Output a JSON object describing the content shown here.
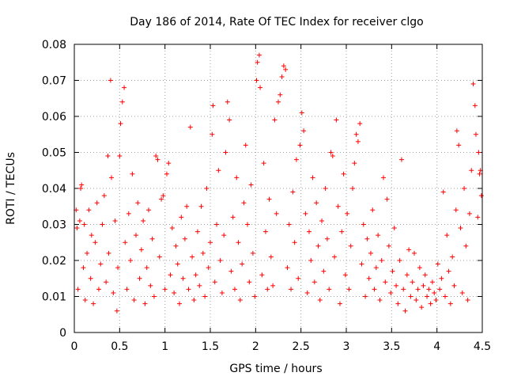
{
  "chart_data": {
    "type": "scatter",
    "title": "Day 186 of 2014, Rate Of TEC Index for receiver clgo",
    "xlabel": "GPS time / hours",
    "ylabel": "ROTI / TECUs",
    "xlim": [
      0,
      4.5
    ],
    "ylim": [
      0,
      0.08
    ],
    "x_ticks": [
      0,
      0.5,
      1,
      1.5,
      2,
      2.5,
      3,
      3.5,
      4,
      4.5
    ],
    "x_tick_labels": [
      "0",
      "0.5",
      "1",
      "1.5",
      "2",
      "2.5",
      "3",
      "3.5",
      "4",
      "4.5"
    ],
    "y_ticks": [
      0,
      0.01,
      0.02,
      0.03,
      0.04,
      0.05,
      0.06,
      0.07,
      0.08
    ],
    "y_tick_labels": [
      "0",
      "0.01",
      "0.02",
      "0.03",
      "0.04",
      "0.05",
      "0.06",
      "0.07",
      "0.08"
    ],
    "grid": true,
    "marker": "+",
    "series_color": "#ff0000",
    "series": [
      {
        "name": "ROTI",
        "points": [
          [
            0.02,
            0.034
          ],
          [
            0.03,
            0.029
          ],
          [
            0.04,
            0.012
          ],
          [
            0.06,
            0.031
          ],
          [
            0.07,
            0.04
          ],
          [
            0.08,
            0.041
          ],
          [
            0.1,
            0.018
          ],
          [
            0.11,
            0.03
          ],
          [
            0.12,
            0.009
          ],
          [
            0.14,
            0.022
          ],
          [
            0.16,
            0.034
          ],
          [
            0.18,
            0.015
          ],
          [
            0.19,
            0.027
          ],
          [
            0.21,
            0.008
          ],
          [
            0.23,
            0.025
          ],
          [
            0.25,
            0.036
          ],
          [
            0.27,
            0.012
          ],
          [
            0.29,
            0.019
          ],
          [
            0.31,
            0.03
          ],
          [
            0.33,
            0.038
          ],
          [
            0.35,
            0.014
          ],
          [
            0.37,
            0.049
          ],
          [
            0.38,
            0.022
          ],
          [
            0.4,
            0.07
          ],
          [
            0.41,
            0.043
          ],
          [
            0.43,
            0.011
          ],
          [
            0.45,
            0.031
          ],
          [
            0.47,
            0.006
          ],
          [
            0.48,
            0.018
          ],
          [
            0.5,
            0.049
          ],
          [
            0.51,
            0.058
          ],
          [
            0.53,
            0.064
          ],
          [
            0.55,
            0.068
          ],
          [
            0.56,
            0.025
          ],
          [
            0.58,
            0.012
          ],
          [
            0.6,
            0.033
          ],
          [
            0.62,
            0.02
          ],
          [
            0.64,
            0.044
          ],
          [
            0.66,
            0.009
          ],
          [
            0.68,
            0.027
          ],
          [
            0.7,
            0.036
          ],
          [
            0.72,
            0.015
          ],
          [
            0.74,
            0.023
          ],
          [
            0.76,
            0.031
          ],
          [
            0.78,
            0.008
          ],
          [
            0.8,
            0.018
          ],
          [
            0.82,
            0.034
          ],
          [
            0.84,
            0.013
          ],
          [
            0.86,
            0.026
          ],
          [
            0.88,
            0.01
          ],
          [
            0.9,
            0.049
          ],
          [
            0.92,
            0.048
          ],
          [
            0.94,
            0.021
          ],
          [
            0.96,
            0.037
          ],
          [
            0.98,
            0.038
          ],
          [
            1.0,
            0.012
          ],
          [
            1.02,
            0.044
          ],
          [
            1.04,
            0.047
          ],
          [
            1.06,
            0.016
          ],
          [
            1.08,
            0.029
          ],
          [
            1.1,
            0.011
          ],
          [
            1.12,
            0.024
          ],
          [
            1.14,
            0.019
          ],
          [
            1.16,
            0.008
          ],
          [
            1.18,
            0.032
          ],
          [
            1.2,
            0.015
          ],
          [
            1.22,
            0.026
          ],
          [
            1.24,
            0.035
          ],
          [
            1.26,
            0.012
          ],
          [
            1.28,
            0.057
          ],
          [
            1.3,
            0.021
          ],
          [
            1.32,
            0.009
          ],
          [
            1.34,
            0.016
          ],
          [
            1.36,
            0.028
          ],
          [
            1.38,
            0.013
          ],
          [
            1.4,
            0.035
          ],
          [
            1.42,
            0.022
          ],
          [
            1.44,
            0.01
          ],
          [
            1.46,
            0.04
          ],
          [
            1.48,
            0.018
          ],
          [
            1.5,
            0.025
          ],
          [
            1.52,
            0.055
          ],
          [
            1.53,
            0.063
          ],
          [
            1.55,
            0.014
          ],
          [
            1.57,
            0.03
          ],
          [
            1.59,
            0.045
          ],
          [
            1.61,
            0.02
          ],
          [
            1.63,
            0.011
          ],
          [
            1.65,
            0.027
          ],
          [
            1.67,
            0.05
          ],
          [
            1.69,
            0.064
          ],
          [
            1.71,
            0.059
          ],
          [
            1.73,
            0.017
          ],
          [
            1.75,
            0.032
          ],
          [
            1.77,
            0.012
          ],
          [
            1.79,
            0.043
          ],
          [
            1.81,
            0.025
          ],
          [
            1.83,
            0.009
          ],
          [
            1.85,
            0.019
          ],
          [
            1.87,
            0.036
          ],
          [
            1.89,
            0.052
          ],
          [
            1.91,
            0.03
          ],
          [
            1.93,
            0.014
          ],
          [
            1.95,
            0.041
          ],
          [
            1.97,
            0.022
          ],
          [
            1.99,
            0.01
          ],
          [
            2.01,
            0.07
          ],
          [
            2.02,
            0.075
          ],
          [
            2.04,
            0.077
          ],
          [
            2.05,
            0.068
          ],
          [
            2.07,
            0.016
          ],
          [
            2.09,
            0.047
          ],
          [
            2.11,
            0.028
          ],
          [
            2.13,
            0.012
          ],
          [
            2.15,
            0.037
          ],
          [
            2.17,
            0.021
          ],
          [
            2.19,
            0.013
          ],
          [
            2.21,
            0.059
          ],
          [
            2.23,
            0.033
          ],
          [
            2.25,
            0.064
          ],
          [
            2.27,
            0.066
          ],
          [
            2.29,
            0.071
          ],
          [
            2.31,
            0.074
          ],
          [
            2.33,
            0.073
          ],
          [
            2.35,
            0.018
          ],
          [
            2.37,
            0.03
          ],
          [
            2.39,
            0.012
          ],
          [
            2.41,
            0.039
          ],
          [
            2.43,
            0.025
          ],
          [
            2.45,
            0.048
          ],
          [
            2.47,
            0.015
          ],
          [
            2.49,
            0.052
          ],
          [
            2.51,
            0.061
          ],
          [
            2.53,
            0.056
          ],
          [
            2.55,
            0.033
          ],
          [
            2.57,
            0.011
          ],
          [
            2.59,
            0.028
          ],
          [
            2.61,
            0.02
          ],
          [
            2.63,
            0.043
          ],
          [
            2.65,
            0.014
          ],
          [
            2.67,
            0.036
          ],
          [
            2.69,
            0.024
          ],
          [
            2.71,
            0.009
          ],
          [
            2.73,
            0.031
          ],
          [
            2.75,
            0.017
          ],
          [
            2.77,
            0.04
          ],
          [
            2.79,
            0.026
          ],
          [
            2.81,
            0.012
          ],
          [
            2.83,
            0.05
          ],
          [
            2.85,
            0.049
          ],
          [
            2.87,
            0.021
          ],
          [
            2.89,
            0.059
          ],
          [
            2.91,
            0.035
          ],
          [
            2.93,
            0.008
          ],
          [
            2.95,
            0.028
          ],
          [
            2.97,
            0.044
          ],
          [
            2.99,
            0.016
          ],
          [
            3.01,
            0.033
          ],
          [
            3.03,
            0.012
          ],
          [
            3.05,
            0.024
          ],
          [
            3.07,
            0.04
          ],
          [
            3.09,
            0.047
          ],
          [
            3.11,
            0.055
          ],
          [
            3.13,
            0.053
          ],
          [
            3.15,
            0.058
          ],
          [
            3.17,
            0.019
          ],
          [
            3.19,
            0.03
          ],
          [
            3.21,
            0.01
          ],
          [
            3.23,
            0.026
          ],
          [
            3.25,
            0.015
          ],
          [
            3.27,
            0.022
          ],
          [
            3.29,
            0.034
          ],
          [
            3.31,
            0.012
          ],
          [
            3.33,
            0.018
          ],
          [
            3.35,
            0.027
          ],
          [
            3.37,
            0.009
          ],
          [
            3.39,
            0.02
          ],
          [
            3.41,
            0.043
          ],
          [
            3.43,
            0.014
          ],
          [
            3.45,
            0.037
          ],
          [
            3.47,
            0.024
          ],
          [
            3.49,
            0.011
          ],
          [
            3.51,
            0.017
          ],
          [
            3.53,
            0.029
          ],
          [
            3.55,
            0.013
          ],
          [
            3.57,
            0.008
          ],
          [
            3.59,
            0.02
          ],
          [
            3.61,
            0.048
          ],
          [
            3.63,
            0.012
          ],
          [
            3.65,
            0.006
          ],
          [
            3.67,
            0.016
          ],
          [
            3.69,
            0.023
          ],
          [
            3.71,
            0.01
          ],
          [
            3.73,
            0.014
          ],
          [
            3.75,
            0.022
          ],
          [
            3.77,
            0.009
          ],
          [
            3.79,
            0.012
          ],
          [
            3.81,
            0.018
          ],
          [
            3.83,
            0.007
          ],
          [
            3.85,
            0.013
          ],
          [
            3.87,
            0.016
          ],
          [
            3.89,
            0.01
          ],
          [
            3.91,
            0.012
          ],
          [
            3.93,
            0.008
          ],
          [
            3.95,
            0.014
          ],
          [
            3.97,
            0.011
          ],
          [
            3.99,
            0.009
          ],
          [
            4.01,
            0.019
          ],
          [
            4.03,
            0.012
          ],
          [
            4.05,
            0.015
          ],
          [
            4.07,
            0.039
          ],
          [
            4.09,
            0.01
          ],
          [
            4.11,
            0.027
          ],
          [
            4.13,
            0.017
          ],
          [
            4.15,
            0.008
          ],
          [
            4.17,
            0.021
          ],
          [
            4.19,
            0.013
          ],
          [
            4.21,
            0.034
          ],
          [
            4.22,
            0.056
          ],
          [
            4.24,
            0.052
          ],
          [
            4.26,
            0.029
          ],
          [
            4.28,
            0.011
          ],
          [
            4.3,
            0.04
          ],
          [
            4.32,
            0.024
          ],
          [
            4.34,
            0.009
          ],
          [
            4.36,
            0.033
          ],
          [
            4.38,
            0.045
          ],
          [
            4.4,
            0.069
          ],
          [
            4.42,
            0.063
          ],
          [
            4.43,
            0.055
          ],
          [
            4.45,
            0.032
          ],
          [
            4.46,
            0.05
          ],
          [
            4.47,
            0.044
          ],
          [
            4.48,
            0.045
          ],
          [
            4.49,
            0.038
          ]
        ]
      }
    ]
  }
}
